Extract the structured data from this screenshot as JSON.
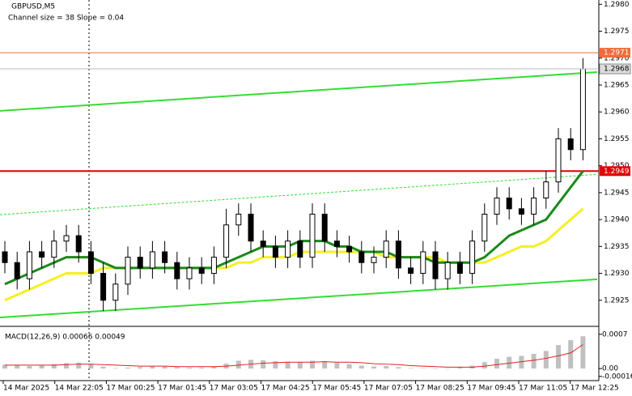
{
  "chart_data": {
    "type": "candlestick",
    "title": "GBPUSD,M5",
    "subtitle": "Channel size = 38 Slope = 0.04",
    "x_labels": [
      "14 Mar 2025",
      "14 Mar 22:05",
      "17 Mar 00:25",
      "17 Mar 01:45",
      "17 Mar 03:05",
      "17 Mar 04:25",
      "17 Mar 05:45",
      "17 Mar 07:05",
      "17 Mar 08:25",
      "17 Mar 09:45",
      "17 Mar 11:05",
      "17 Mar 12:25"
    ],
    "open": [
      1.2934,
      1.2932,
      1.2929,
      1.2934,
      1.2933,
      1.2936,
      1.2937,
      1.2934,
      1.293,
      1.2925,
      1.2928,
      1.2933,
      1.2931,
      1.2934,
      1.2932,
      1.2929,
      1.2931,
      1.293,
      1.2933,
      1.2939,
      1.2941,
      1.2936,
      1.2935,
      1.2933,
      1.2936,
      1.2933,
      1.2941,
      1.2936,
      1.2935,
      1.2934,
      1.2932,
      1.2933,
      1.2936,
      1.2931,
      1.293,
      1.2934,
      1.2929,
      1.2932,
      1.293,
      1.2936,
      1.2941,
      1.2944,
      1.2942,
      1.2941,
      1.2944,
      1.2947,
      1.2955,
      1.2953
    ],
    "high": [
      1.2936,
      1.2934,
      1.2936,
      1.2936,
      1.2938,
      1.2939,
      1.2939,
      1.2936,
      1.2932,
      1.293,
      1.2935,
      1.2935,
      1.2936,
      1.2936,
      1.2934,
      1.2933,
      1.2933,
      1.2935,
      1.2942,
      1.2943,
      1.2943,
      1.2938,
      1.2937,
      1.2938,
      1.2938,
      1.2943,
      1.2943,
      1.2938,
      1.2937,
      1.2936,
      1.2935,
      1.2938,
      1.2938,
      1.2933,
      1.2936,
      1.2936,
      1.2934,
      1.2934,
      1.2938,
      1.2943,
      1.2946,
      1.2946,
      1.2944,
      1.2946,
      1.2949,
      1.2957,
      1.2957,
      1.297
    ],
    "low": [
      1.293,
      1.2927,
      1.2927,
      1.2931,
      1.2931,
      1.2934,
      1.2932,
      1.2928,
      1.2923,
      1.2923,
      1.2926,
      1.2929,
      1.2929,
      1.293,
      1.2927,
      1.2927,
      1.2928,
      1.2928,
      1.2931,
      1.2937,
      1.2934,
      1.2933,
      1.2931,
      1.2931,
      1.2931,
      1.2931,
      1.2934,
      1.2933,
      1.2932,
      1.293,
      1.293,
      1.2931,
      1.2929,
      1.2928,
      1.2928,
      1.2927,
      1.2927,
      1.2928,
      1.2928,
      1.2934,
      1.2939,
      1.294,
      1.2939,
      1.2939,
      1.2942,
      1.2945,
      1.2951,
      1.2951
    ],
    "close": [
      1.2932,
      1.2929,
      1.2934,
      1.2933,
      1.2936,
      1.2937,
      1.2934,
      1.293,
      1.2925,
      1.2928,
      1.2933,
      1.2931,
      1.2934,
      1.2932,
      1.2929,
      1.2931,
      1.293,
      1.2933,
      1.2939,
      1.2941,
      1.2936,
      1.2935,
      1.2933,
      1.2936,
      1.2933,
      1.2941,
      1.2936,
      1.2935,
      1.2934,
      1.2932,
      1.2933,
      1.2936,
      1.2931,
      1.293,
      1.2934,
      1.2929,
      1.2932,
      1.293,
      1.2936,
      1.2941,
      1.2944,
      1.2942,
      1.2941,
      1.2944,
      1.2947,
      1.2955,
      1.2953,
      1.2968
    ],
    "moving_averages": [
      {
        "color": "#f5f020",
        "values": [
          1.2925,
          1.2926,
          1.2927,
          1.2928,
          1.2929,
          1.293,
          1.293,
          1.293,
          1.2931,
          1.2931,
          1.2931,
          1.2931,
          1.2931,
          1.2931,
          1.2931,
          1.2931,
          1.2931,
          1.2931,
          1.2931,
          1.2932,
          1.2932,
          1.2933,
          1.2933,
          1.2933,
          1.2934,
          1.2934,
          1.2934,
          1.2934,
          1.2934,
          1.2934,
          1.2934,
          1.2933,
          1.2933,
          1.2933,
          1.2933,
          1.2933,
          1.2932,
          1.2932,
          1.2932,
          1.2932,
          1.2933,
          1.2934,
          1.2935,
          1.2935,
          1.2936,
          1.2938,
          1.294,
          1.2942
        ]
      },
      {
        "color": "#1a8a1a",
        "values": [
          1.2928,
          1.2929,
          1.293,
          1.2931,
          1.2932,
          1.2933,
          1.2933,
          1.2933,
          1.2932,
          1.2931,
          1.2931,
          1.2931,
          1.2931,
          1.2931,
          1.2931,
          1.2931,
          1.2931,
          1.2931,
          1.2932,
          1.2933,
          1.2934,
          1.2935,
          1.2935,
          1.2935,
          1.2936,
          1.2936,
          1.2936,
          1.2935,
          1.2935,
          1.2934,
          1.2934,
          1.2934,
          1.2933,
          1.2933,
          1.2933,
          1.2932,
          1.2932,
          1.2932,
          1.2932,
          1.2933,
          1.2935,
          1.2937,
          1.2938,
          1.2939,
          1.294,
          1.2943,
          1.2946,
          1.2949
        ]
      }
    ],
    "channel": {
      "color": "#33dd33",
      "upper": [
        1.29602,
        1.29674
      ],
      "middle": [
        1.29409,
        1.29484
      ],
      "lower": [
        1.29218,
        1.29289
      ]
    },
    "levels": [
      {
        "value": 1.2971,
        "color": "#f26b3a"
      },
      {
        "value": 1.2949,
        "color": "#e00000"
      }
    ],
    "ylim": [
      1.29206,
      1.29808
    ],
    "yticks": [
      1.2925,
      {
        "value": 1.293,
        "label": "1.2930"
      },
      1.2935,
      {
        "value": 1.294,
        "label": "1.2940"
      },
      1.2945,
      {
        "value": 1.295,
        "label": "1.2950"
      },
      1.2955,
      {
        "value": 1.296,
        "label": "1.2960"
      },
      1.2965,
      {
        "value": 1.297,
        "label": "1.2970"
      },
      1.2975,
      {
        "value": 1.298,
        "label": "1.2980"
      }
    ],
    "macd": {
      "label": "MACD(12,26,9) 0.00066 0.00049",
      "histogram_color": "#c0c0c0",
      "signal_color": "#e02020",
      "histogram": [
        8e-05,
        6e-05,
        5e-05,
        6e-05,
        9e-05,
        0.00011,
        0.00012,
        0.0001,
        4e-05,
        1e-05,
        2e-05,
        3e-05,
        4e-05,
        4e-05,
        3e-05,
        2e-05,
        2e-05,
        4e-05,
        0.0001,
        0.00016,
        0.00018,
        0.00017,
        0.00015,
        0.00014,
        0.00013,
        0.00016,
        0.00015,
        0.00012,
        9e-05,
        6e-05,
        4e-05,
        5e-05,
        3e-05,
        1e-05,
        1e-05,
        -1e-05,
        0.0,
        2e-05,
        6e-05,
        0.00013,
        0.0002,
        0.00024,
        0.00026,
        0.0003,
        0.00036,
        0.00048,
        0.00058,
        0.00066
      ],
      "signal": [
        7e-05,
        7e-05,
        7e-05,
        7e-05,
        7e-05,
        8e-05,
        9e-05,
        9e-05,
        8e-05,
        7e-05,
        6e-05,
        5e-05,
        5e-05,
        5e-05,
        4e-05,
        4e-05,
        4e-05,
        4e-05,
        5e-05,
        7e-05,
        9e-05,
        0.00011,
        0.00012,
        0.00013,
        0.00013,
        0.00013,
        0.00014,
        0.00013,
        0.00013,
        0.00012,
        0.0001,
        9e-05,
        8e-05,
        6e-05,
        5e-05,
        4e-05,
        3e-05,
        3e-05,
        3e-05,
        5e-05,
        8e-05,
        0.00011,
        0.00014,
        0.00017,
        0.00021,
        0.00026,
        0.00032,
        0.00049
      ],
      "ylim": [
        -0.00018,
        0.00078
      ],
      "yticks": [
        0.0007,
        {
          "value": 0,
          "label": "0.00"
        },
        -0.00016
      ]
    }
  }
}
